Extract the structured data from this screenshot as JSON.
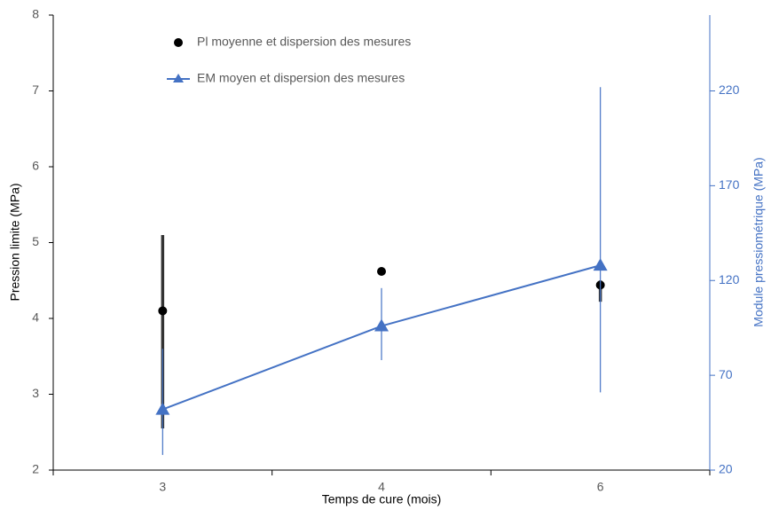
{
  "chart_data": {
    "type": "errorbar",
    "categories": [
      "3",
      "4",
      "6"
    ],
    "xlabel": "Temps de cure (mois)",
    "ylabel": "Pression limite (MPa)",
    "y2label": "Module pressiométrique (MPa)",
    "ylim": [
      2,
      8
    ],
    "yticks": [
      2,
      3,
      4,
      5,
      6,
      7,
      8
    ],
    "y2lim": [
      20,
      260
    ],
    "y2ticks": [
      20,
      70,
      120,
      170,
      220
    ],
    "series": [
      {
        "name": "Pl moyenne et dispersion des mesures",
        "color": "#000000",
        "marker": "circle",
        "line": false,
        "values": [
          4.1,
          4.62,
          4.44
        ],
        "err_low": [
          2.55,
          null,
          4.22
        ],
        "err_high": [
          5.1,
          null,
          4.5
        ]
      },
      {
        "name": "EM moyen et dispersion des mesures",
        "color": "#4472c4",
        "marker": "triangle",
        "line": true,
        "axis": "y2",
        "values": [
          52,
          96,
          128
        ],
        "err_low": [
          28,
          78,
          61
        ],
        "err_high": [
          84,
          116,
          222
        ]
      }
    ]
  }
}
